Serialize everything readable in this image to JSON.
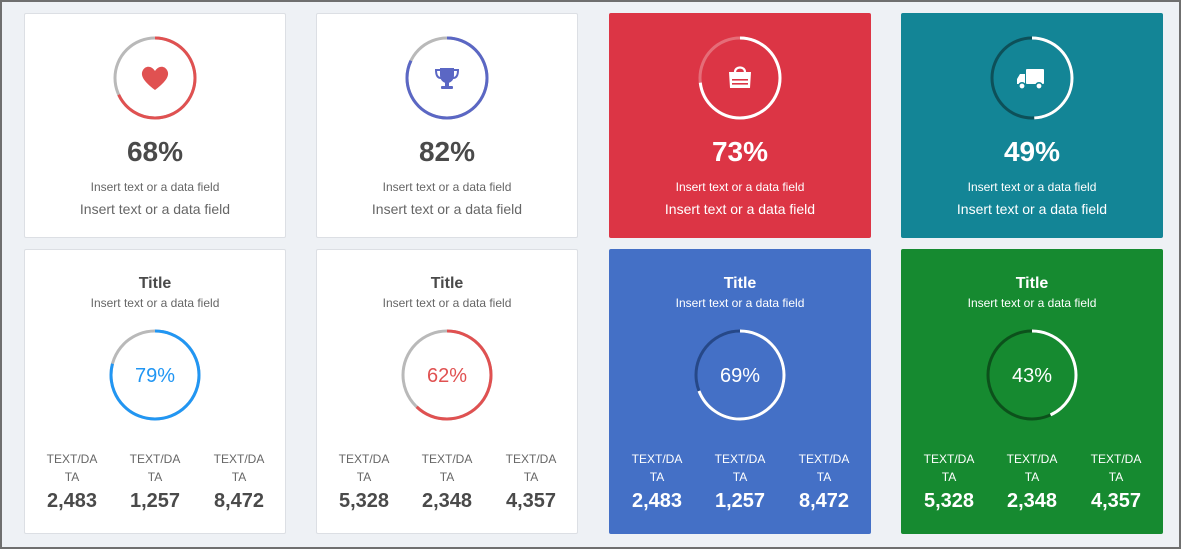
{
  "colors": {
    "red": "#e05151",
    "indigo": "#5b67c4",
    "crimson": "#dc3545",
    "teal": "#138596",
    "blue": "#2196f3",
    "royal_blue": "#4470c6",
    "green": "#168a30",
    "track_gray": "#b9b9b9"
  },
  "kpi_cards": [
    {
      "icon": "heart-icon",
      "percent": "68%",
      "progress": 0.68,
      "line1": "Insert text or a data field",
      "line2": "Insert text or a data field"
    },
    {
      "icon": "trophy-icon",
      "percent": "82%",
      "progress": 0.82,
      "line1": "Insert text or a data field",
      "line2": "Insert text or a data field"
    },
    {
      "icon": "shopping-bag-icon",
      "percent": "73%",
      "progress": 0.73,
      "line1": "Insert text or a data field",
      "line2": "Insert text or a data field"
    },
    {
      "icon": "truck-icon",
      "percent": "49%",
      "progress": 0.49,
      "line1": "Insert text or a data field",
      "line2": "Insert text or a data field"
    }
  ],
  "stat_cards": [
    {
      "title": "Title",
      "subtitle": "Insert text or a data field",
      "percent": "79%",
      "progress": 0.79,
      "stats": [
        {
          "label": "TEXT/DA TA",
          "value": "2,483"
        },
        {
          "label": "TEXT/DA TA",
          "value": "1,257"
        },
        {
          "label": "TEXT/DA TA",
          "value": "8,472"
        }
      ]
    },
    {
      "title": "Title",
      "subtitle": "Insert text or a data field",
      "percent": "62%",
      "progress": 0.62,
      "stats": [
        {
          "label": "TEXT/DA TA",
          "value": "5,328"
        },
        {
          "label": "TEXT/DA TA",
          "value": "2,348"
        },
        {
          "label": "TEXT/DA TA",
          "value": "4,357"
        }
      ]
    },
    {
      "title": "Title",
      "subtitle": "Insert text or a data field",
      "percent": "69%",
      "progress": 0.69,
      "stats": [
        {
          "label": "TEXT/DA TA",
          "value": "2,483"
        },
        {
          "label": "TEXT/DA TA",
          "value": "1,257"
        },
        {
          "label": "TEXT/DA TA",
          "value": "8,472"
        }
      ]
    },
    {
      "title": "Title",
      "subtitle": "Insert text or a data field",
      "percent": "43%",
      "progress": 0.43,
      "stats": [
        {
          "label": "TEXT/DA TA",
          "value": "5,328"
        },
        {
          "label": "TEXT/DA TA",
          "value": "2,348"
        },
        {
          "label": "TEXT/DA TA",
          "value": "4,357"
        }
      ]
    }
  ]
}
